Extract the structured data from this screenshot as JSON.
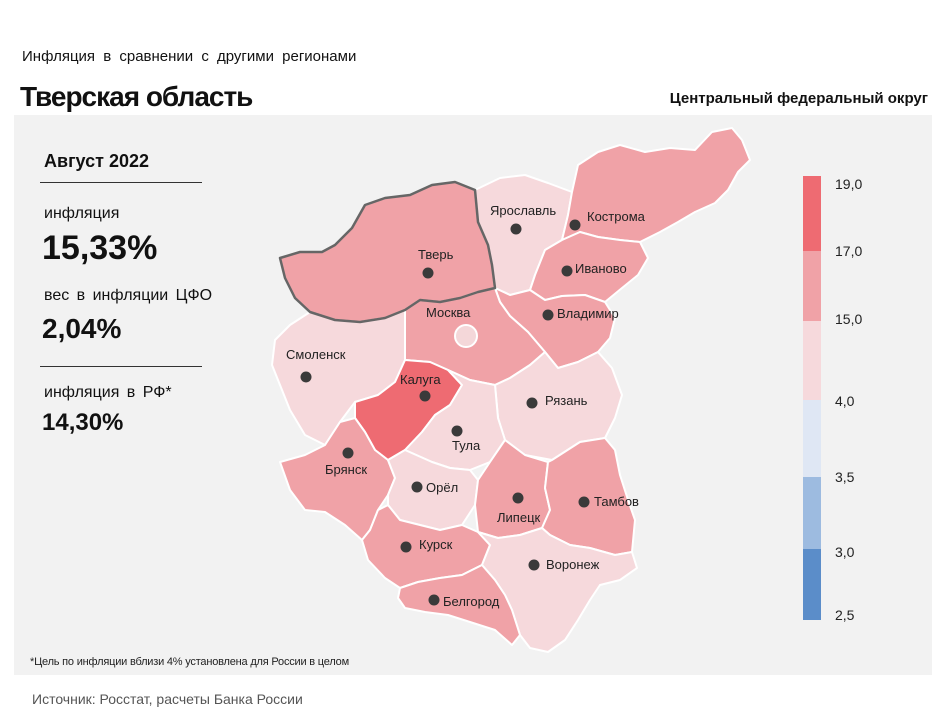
{
  "header": {
    "subtitle": "Инфляция  в сравнении  с другими  регионами",
    "title": "Тверская область",
    "district": "Центральный федеральный округ"
  },
  "stats": {
    "period": "Август 2022",
    "inflation_label": "инфляция",
    "inflation_value": "15,33%",
    "weight_label": "вес в инфляции  ЦФО",
    "weight_value": "2,04%",
    "rf_label": "инфляция  в РФ*",
    "rf_value": "14,30%"
  },
  "colors": {
    "band_2_5_3_0": "#5b8dc9",
    "band_3_0_3_5": "#9dbbe0",
    "band_3_5_4_0": "#dfe7f4",
    "band_4_0_15_0": "#f6d9dc",
    "band_15_0_17_0": "#f0a2a7",
    "band_17_0_19_0": "#ee6b72",
    "highlight_border": "#666666"
  },
  "legend": {
    "ticks": [
      "19,0",
      "17,0",
      "15,0",
      "4,0",
      "3,5",
      "3,0",
      "2,5"
    ]
  },
  "regions": [
    {
      "name": "Ярославль",
      "band": "4,0–15,0"
    },
    {
      "name": "Кострома",
      "band": "15,0–17,0"
    },
    {
      "name": "Тверь",
      "band": "15,0–17,0"
    },
    {
      "name": "Иваново",
      "band": "15,0–17,0"
    },
    {
      "name": "Москва",
      "band": "15,0–17,0"
    },
    {
      "name": "Владимир",
      "band": "15,0–17,0"
    },
    {
      "name": "Смоленск",
      "band": "4,0–15,0"
    },
    {
      "name": "Калуга",
      "band": "17,0–19,0"
    },
    {
      "name": "Рязань",
      "band": "4,0–15,0"
    },
    {
      "name": "Тула",
      "band": "4,0–15,0"
    },
    {
      "name": "Брянск",
      "band": "15,0–17,0"
    },
    {
      "name": "Орёл",
      "band": "4,0–15,0"
    },
    {
      "name": "Липецк",
      "band": "15,0–17,0"
    },
    {
      "name": "Тамбов",
      "band": "15,0–17,0"
    },
    {
      "name": "Курск",
      "band": "15,0–17,0"
    },
    {
      "name": "Воронеж",
      "band": "4,0–15,0"
    },
    {
      "name": "Белгород",
      "band": "15,0–17,0"
    }
  ],
  "footnote": "*Цель по инфляции вблизи 4% установлена для России в целом",
  "source": "Источник: Росстат, расчеты Банка России"
}
